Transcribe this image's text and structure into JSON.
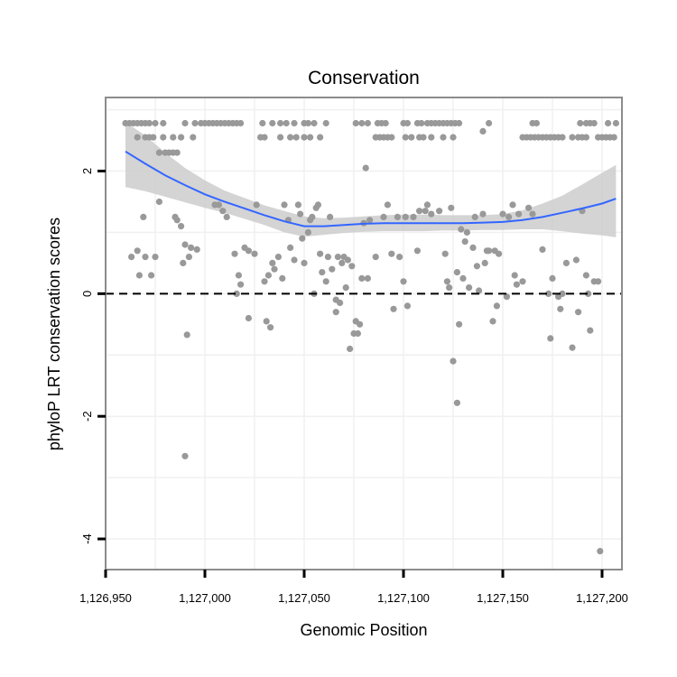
{
  "chart_data": {
    "type": "scatter",
    "title": "Conservation",
    "xlabel": "Genomic Position",
    "ylabel": "phyloP LRT conservation scores",
    "xlim": [
      1126950,
      1127210
    ],
    "ylim": [
      -4.5,
      3.2
    ],
    "x_ticks": [
      1126950,
      1127000,
      1127050,
      1127100,
      1127150,
      1127200
    ],
    "x_tick_labels": [
      "1,126,950",
      "1,127,000",
      "1,127,050",
      "1,127,100",
      "1,127,150",
      "1,127,200"
    ],
    "y_ticks": [
      -4,
      -2,
      0,
      2
    ],
    "y_tick_labels": [
      "-4",
      "-2",
      "0",
      "2"
    ],
    "grid": true,
    "reference_line": {
      "y": 0,
      "style": "dashed"
    },
    "colors": {
      "points": "#999999",
      "smooth": "#3366ff",
      "band": "#cccccc",
      "border": "#8c8c8c"
    },
    "points": [
      [
        1126960,
        2.78
      ],
      [
        1126962,
        2.78
      ],
      [
        1126964,
        2.78
      ],
      [
        1126966,
        2.78
      ],
      [
        1126968,
        2.78
      ],
      [
        1126970,
        2.78
      ],
      [
        1126972,
        2.78
      ],
      [
        1126975,
        2.78
      ],
      [
        1126979,
        2.78
      ],
      [
        1126966,
        2.55
      ],
      [
        1126970,
        2.55
      ],
      [
        1126972,
        2.55
      ],
      [
        1126974,
        2.55
      ],
      [
        1126979,
        2.55
      ],
      [
        1126984,
        2.55
      ],
      [
        1126988,
        2.55
      ],
      [
        1126977,
        2.3
      ],
      [
        1126980,
        2.3
      ],
      [
        1126982,
        2.3
      ],
      [
        1126984,
        2.3
      ],
      [
        1126986,
        2.3
      ],
      [
        1126994,
        2.55
      ],
      [
        1126990,
        2.78
      ],
      [
        1126995,
        2.78
      ],
      [
        1126998,
        2.78
      ],
      [
        1127000,
        2.78
      ],
      [
        1127002,
        2.78
      ],
      [
        1127004,
        2.78
      ],
      [
        1127006,
        2.78
      ],
      [
        1127008,
        2.78
      ],
      [
        1127010,
        2.78
      ],
      [
        1127012,
        2.78
      ],
      [
        1127014,
        2.78
      ],
      [
        1127016,
        2.78
      ],
      [
        1127018,
        2.78
      ],
      [
        1127029,
        2.78
      ],
      [
        1127034,
        2.78
      ],
      [
        1127038,
        2.78
      ],
      [
        1127041,
        2.78
      ],
      [
        1127045,
        2.78
      ],
      [
        1127050,
        2.78
      ],
      [
        1127052,
        2.78
      ],
      [
        1127055,
        2.78
      ],
      [
        1127061,
        2.78
      ],
      [
        1127028,
        2.55
      ],
      [
        1127030,
        2.55
      ],
      [
        1127038,
        2.55
      ],
      [
        1127043,
        2.55
      ],
      [
        1127046,
        2.55
      ],
      [
        1127050,
        2.55
      ],
      [
        1127053,
        2.55
      ],
      [
        1127058,
        2.55
      ],
      [
        1127076,
        2.78
      ],
      [
        1127079,
        2.78
      ],
      [
        1127082,
        2.78
      ],
      [
        1127087,
        2.78
      ],
      [
        1127089,
        2.78
      ],
      [
        1127091,
        2.78
      ],
      [
        1127086,
        2.55
      ],
      [
        1127088,
        2.55
      ],
      [
        1127090,
        2.55
      ],
      [
        1127092,
        2.55
      ],
      [
        1127094,
        2.55
      ],
      [
        1127100,
        2.78
      ],
      [
        1127102,
        2.78
      ],
      [
        1127107,
        2.78
      ],
      [
        1127109,
        2.78
      ],
      [
        1127112,
        2.78
      ],
      [
        1127114,
        2.78
      ],
      [
        1127116,
        2.78
      ],
      [
        1127118,
        2.78
      ],
      [
        1127120,
        2.78
      ],
      [
        1127122,
        2.78
      ],
      [
        1127124,
        2.78
      ],
      [
        1127126,
        2.78
      ],
      [
        1127128,
        2.78
      ],
      [
        1127101,
        2.55
      ],
      [
        1127104,
        2.55
      ],
      [
        1127108,
        2.55
      ],
      [
        1127110,
        2.55
      ],
      [
        1127114,
        2.55
      ],
      [
        1127120,
        2.55
      ],
      [
        1127125,
        2.55
      ],
      [
        1127140,
        2.65
      ],
      [
        1127143,
        2.78
      ],
      [
        1127160,
        2.55
      ],
      [
        1127162,
        2.55
      ],
      [
        1127164,
        2.55
      ],
      [
        1127166,
        2.55
      ],
      [
        1127168,
        2.55
      ],
      [
        1127170,
        2.55
      ],
      [
        1127172,
        2.55
      ],
      [
        1127174,
        2.55
      ],
      [
        1127176,
        2.55
      ],
      [
        1127178,
        2.55
      ],
      [
        1127180,
        2.55
      ],
      [
        1127185,
        2.55
      ],
      [
        1127188,
        2.55
      ],
      [
        1127190,
        2.55
      ],
      [
        1127192,
        2.55
      ],
      [
        1127198,
        2.55
      ],
      [
        1127200,
        2.55
      ],
      [
        1127202,
        2.55
      ],
      [
        1127204,
        2.55
      ],
      [
        1127206,
        2.55
      ],
      [
        1127165,
        2.78
      ],
      [
        1127167,
        2.78
      ],
      [
        1127189,
        2.78
      ],
      [
        1127192,
        2.78
      ],
      [
        1127194,
        2.78
      ],
      [
        1127196,
        2.78
      ],
      [
        1127203,
        2.78
      ],
      [
        1127207,
        2.78
      ],
      [
        1126963,
        0.6
      ],
      [
        1126966,
        0.7
      ],
      [
        1126967,
        0.3
      ],
      [
        1126969,
        1.25
      ],
      [
        1126970,
        0.6
      ],
      [
        1126973,
        0.3
      ],
      [
        1126975,
        0.6
      ],
      [
        1126977,
        1.5
      ],
      [
        1126985,
        1.25
      ],
      [
        1126986,
        1.2
      ],
      [
        1126988,
        1.1
      ],
      [
        1126989,
        0.5
      ],
      [
        1126990,
        0.8
      ],
      [
        1126991,
        -0.67
      ],
      [
        1126992,
        0.6
      ],
      [
        1126993,
        0.75
      ],
      [
        1126996,
        0.72
      ],
      [
        1126990,
        -2.65
      ],
      [
        1127005,
        1.45
      ],
      [
        1127007,
        1.45
      ],
      [
        1127009,
        1.35
      ],
      [
        1127011,
        1.25
      ],
      [
        1127015,
        0.65
      ],
      [
        1127016,
        0.0
      ],
      [
        1127017,
        0.3
      ],
      [
        1127018,
        0.15
      ],
      [
        1127020,
        0.75
      ],
      [
        1127022,
        -0.4
      ],
      [
        1127022,
        0.7
      ],
      [
        1127025,
        0.65
      ],
      [
        1127026,
        1.45
      ],
      [
        1127030,
        0.2
      ],
      [
        1127031,
        -0.45
      ],
      [
        1127032,
        0.3
      ],
      [
        1127033,
        -0.55
      ],
      [
        1127034,
        0.5
      ],
      [
        1127035,
        0.4
      ],
      [
        1127037,
        0.6
      ],
      [
        1127039,
        0.25
      ],
      [
        1127040,
        1.45
      ],
      [
        1127042,
        1.2
      ],
      [
        1127043,
        0.75
      ],
      [
        1127045,
        0.55
      ],
      [
        1127047,
        1.45
      ],
      [
        1127048,
        1.3
      ],
      [
        1127049,
        0.9
      ],
      [
        1127050,
        0.5
      ],
      [
        1127052,
        1.0
      ],
      [
        1127053,
        1.2
      ],
      [
        1127054,
        1.25
      ],
      [
        1127055,
        0.0
      ],
      [
        1127056,
        1.4
      ],
      [
        1127057,
        1.45
      ],
      [
        1127058,
        0.65
      ],
      [
        1127059,
        0.35
      ],
      [
        1127061,
        0.2
      ],
      [
        1127062,
        0.6
      ],
      [
        1127063,
        1.25
      ],
      [
        1127064,
        0.4
      ],
      [
        1127066,
        -0.1
      ],
      [
        1127066,
        -0.3
      ],
      [
        1127067,
        0.6
      ],
      [
        1127068,
        -0.15
      ],
      [
        1127069,
        0.5
      ],
      [
        1127070,
        0.6
      ],
      [
        1127071,
        0.1
      ],
      [
        1127072,
        0.55
      ],
      [
        1127073,
        -0.9
      ],
      [
        1127074,
        0.45
      ],
      [
        1127075,
        -0.65
      ],
      [
        1127076,
        -0.45
      ],
      [
        1127077,
        -0.65
      ],
      [
        1127078,
        -0.5
      ],
      [
        1127079,
        0.25
      ],
      [
        1127080,
        1.15
      ],
      [
        1127081,
        2.05
      ],
      [
        1127082,
        0.25
      ],
      [
        1127083,
        1.2
      ],
      [
        1127086,
        0.6
      ],
      [
        1127090,
        1.25
      ],
      [
        1127092,
        1.45
      ],
      [
        1127094,
        0.65
      ],
      [
        1127095,
        -0.25
      ],
      [
        1127097,
        1.25
      ],
      [
        1127098,
        0.6
      ],
      [
        1127100,
        0.2
      ],
      [
        1127101,
        1.25
      ],
      [
        1127102,
        -0.2
      ],
      [
        1127105,
        1.25
      ],
      [
        1127107,
        0.7
      ],
      [
        1127108,
        1.35
      ],
      [
        1127111,
        1.35
      ],
      [
        1127112,
        1.45
      ],
      [
        1127114,
        1.3
      ],
      [
        1127118,
        1.35
      ],
      [
        1127121,
        0.65
      ],
      [
        1127122,
        0.2
      ],
      [
        1127123,
        0.1
      ],
      [
        1127124,
        1.4
      ],
      [
        1127125,
        -1.1
      ],
      [
        1127127,
        -1.78
      ],
      [
        1127127,
        0.35
      ],
      [
        1127128,
        -0.5
      ],
      [
        1127129,
        1.05
      ],
      [
        1127130,
        0.25
      ],
      [
        1127131,
        0.85
      ],
      [
        1127132,
        1.0
      ],
      [
        1127133,
        0.1
      ],
      [
        1127135,
        0.75
      ],
      [
        1127136,
        1.25
      ],
      [
        1127137,
        0.45
      ],
      [
        1127138,
        0.05
      ],
      [
        1127140,
        1.3
      ],
      [
        1127141,
        0.5
      ],
      [
        1127142,
        0.7
      ],
      [
        1127143,
        0.7
      ],
      [
        1127145,
        -0.45
      ],
      [
        1127146,
        0.7
      ],
      [
        1127147,
        -0.2
      ],
      [
        1127148,
        0.65
      ],
      [
        1127150,
        1.3
      ],
      [
        1127152,
        -0.05
      ],
      [
        1127153,
        1.25
      ],
      [
        1127155,
        1.45
      ],
      [
        1127156,
        0.3
      ],
      [
        1127157,
        0.15
      ],
      [
        1127158,
        1.3
      ],
      [
        1127160,
        0.2
      ],
      [
        1127163,
        1.4
      ],
      [
        1127165,
        1.3
      ],
      [
        1127170,
        0.72
      ],
      [
        1127173,
        0.0
      ],
      [
        1127174,
        -0.73
      ],
      [
        1127175,
        0.25
      ],
      [
        1127178,
        -0.05
      ],
      [
        1127179,
        -0.25
      ],
      [
        1127180,
        0.0
      ],
      [
        1127182,
        0.5
      ],
      [
        1127185,
        -0.88
      ],
      [
        1127187,
        0.55
      ],
      [
        1127188,
        -0.3
      ],
      [
        1127190,
        1.35
      ],
      [
        1127192,
        0.3
      ],
      [
        1127193,
        0.0
      ],
      [
        1127194,
        -0.6
      ],
      [
        1127196,
        0.2
      ],
      [
        1127198,
        0.2
      ],
      [
        1127199,
        -4.2
      ]
    ],
    "smooth": {
      "x": [
        1126960,
        1126970,
        1126980,
        1126990,
        1127000,
        1127010,
        1127020,
        1127030,
        1127040,
        1127050,
        1127060,
        1127070,
        1127080,
        1127090,
        1127100,
        1127110,
        1127120,
        1127130,
        1127140,
        1127150,
        1127160,
        1127170,
        1127180,
        1127190,
        1127200,
        1127207
      ],
      "y": [
        2.32,
        2.12,
        1.93,
        1.77,
        1.62,
        1.5,
        1.39,
        1.28,
        1.18,
        1.1,
        1.1,
        1.12,
        1.14,
        1.15,
        1.15,
        1.15,
        1.15,
        1.15,
        1.16,
        1.17,
        1.2,
        1.25,
        1.32,
        1.39,
        1.47,
        1.55
      ],
      "lower": [
        1.74,
        1.67,
        1.58,
        1.49,
        1.4,
        1.32,
        1.22,
        1.12,
        1.0,
        0.93,
        0.96,
        0.99,
        1.01,
        1.02,
        1.02,
        1.02,
        1.03,
        1.03,
        1.04,
        1.04,
        1.05,
        1.05,
        1.02,
        0.98,
        0.95,
        0.92
      ],
      "upper": [
        2.8,
        2.58,
        2.3,
        2.05,
        1.85,
        1.68,
        1.56,
        1.44,
        1.35,
        1.26,
        1.23,
        1.24,
        1.26,
        1.28,
        1.29,
        1.29,
        1.28,
        1.28,
        1.28,
        1.3,
        1.36,
        1.47,
        1.6,
        1.78,
        1.97,
        2.1
      ]
    }
  }
}
